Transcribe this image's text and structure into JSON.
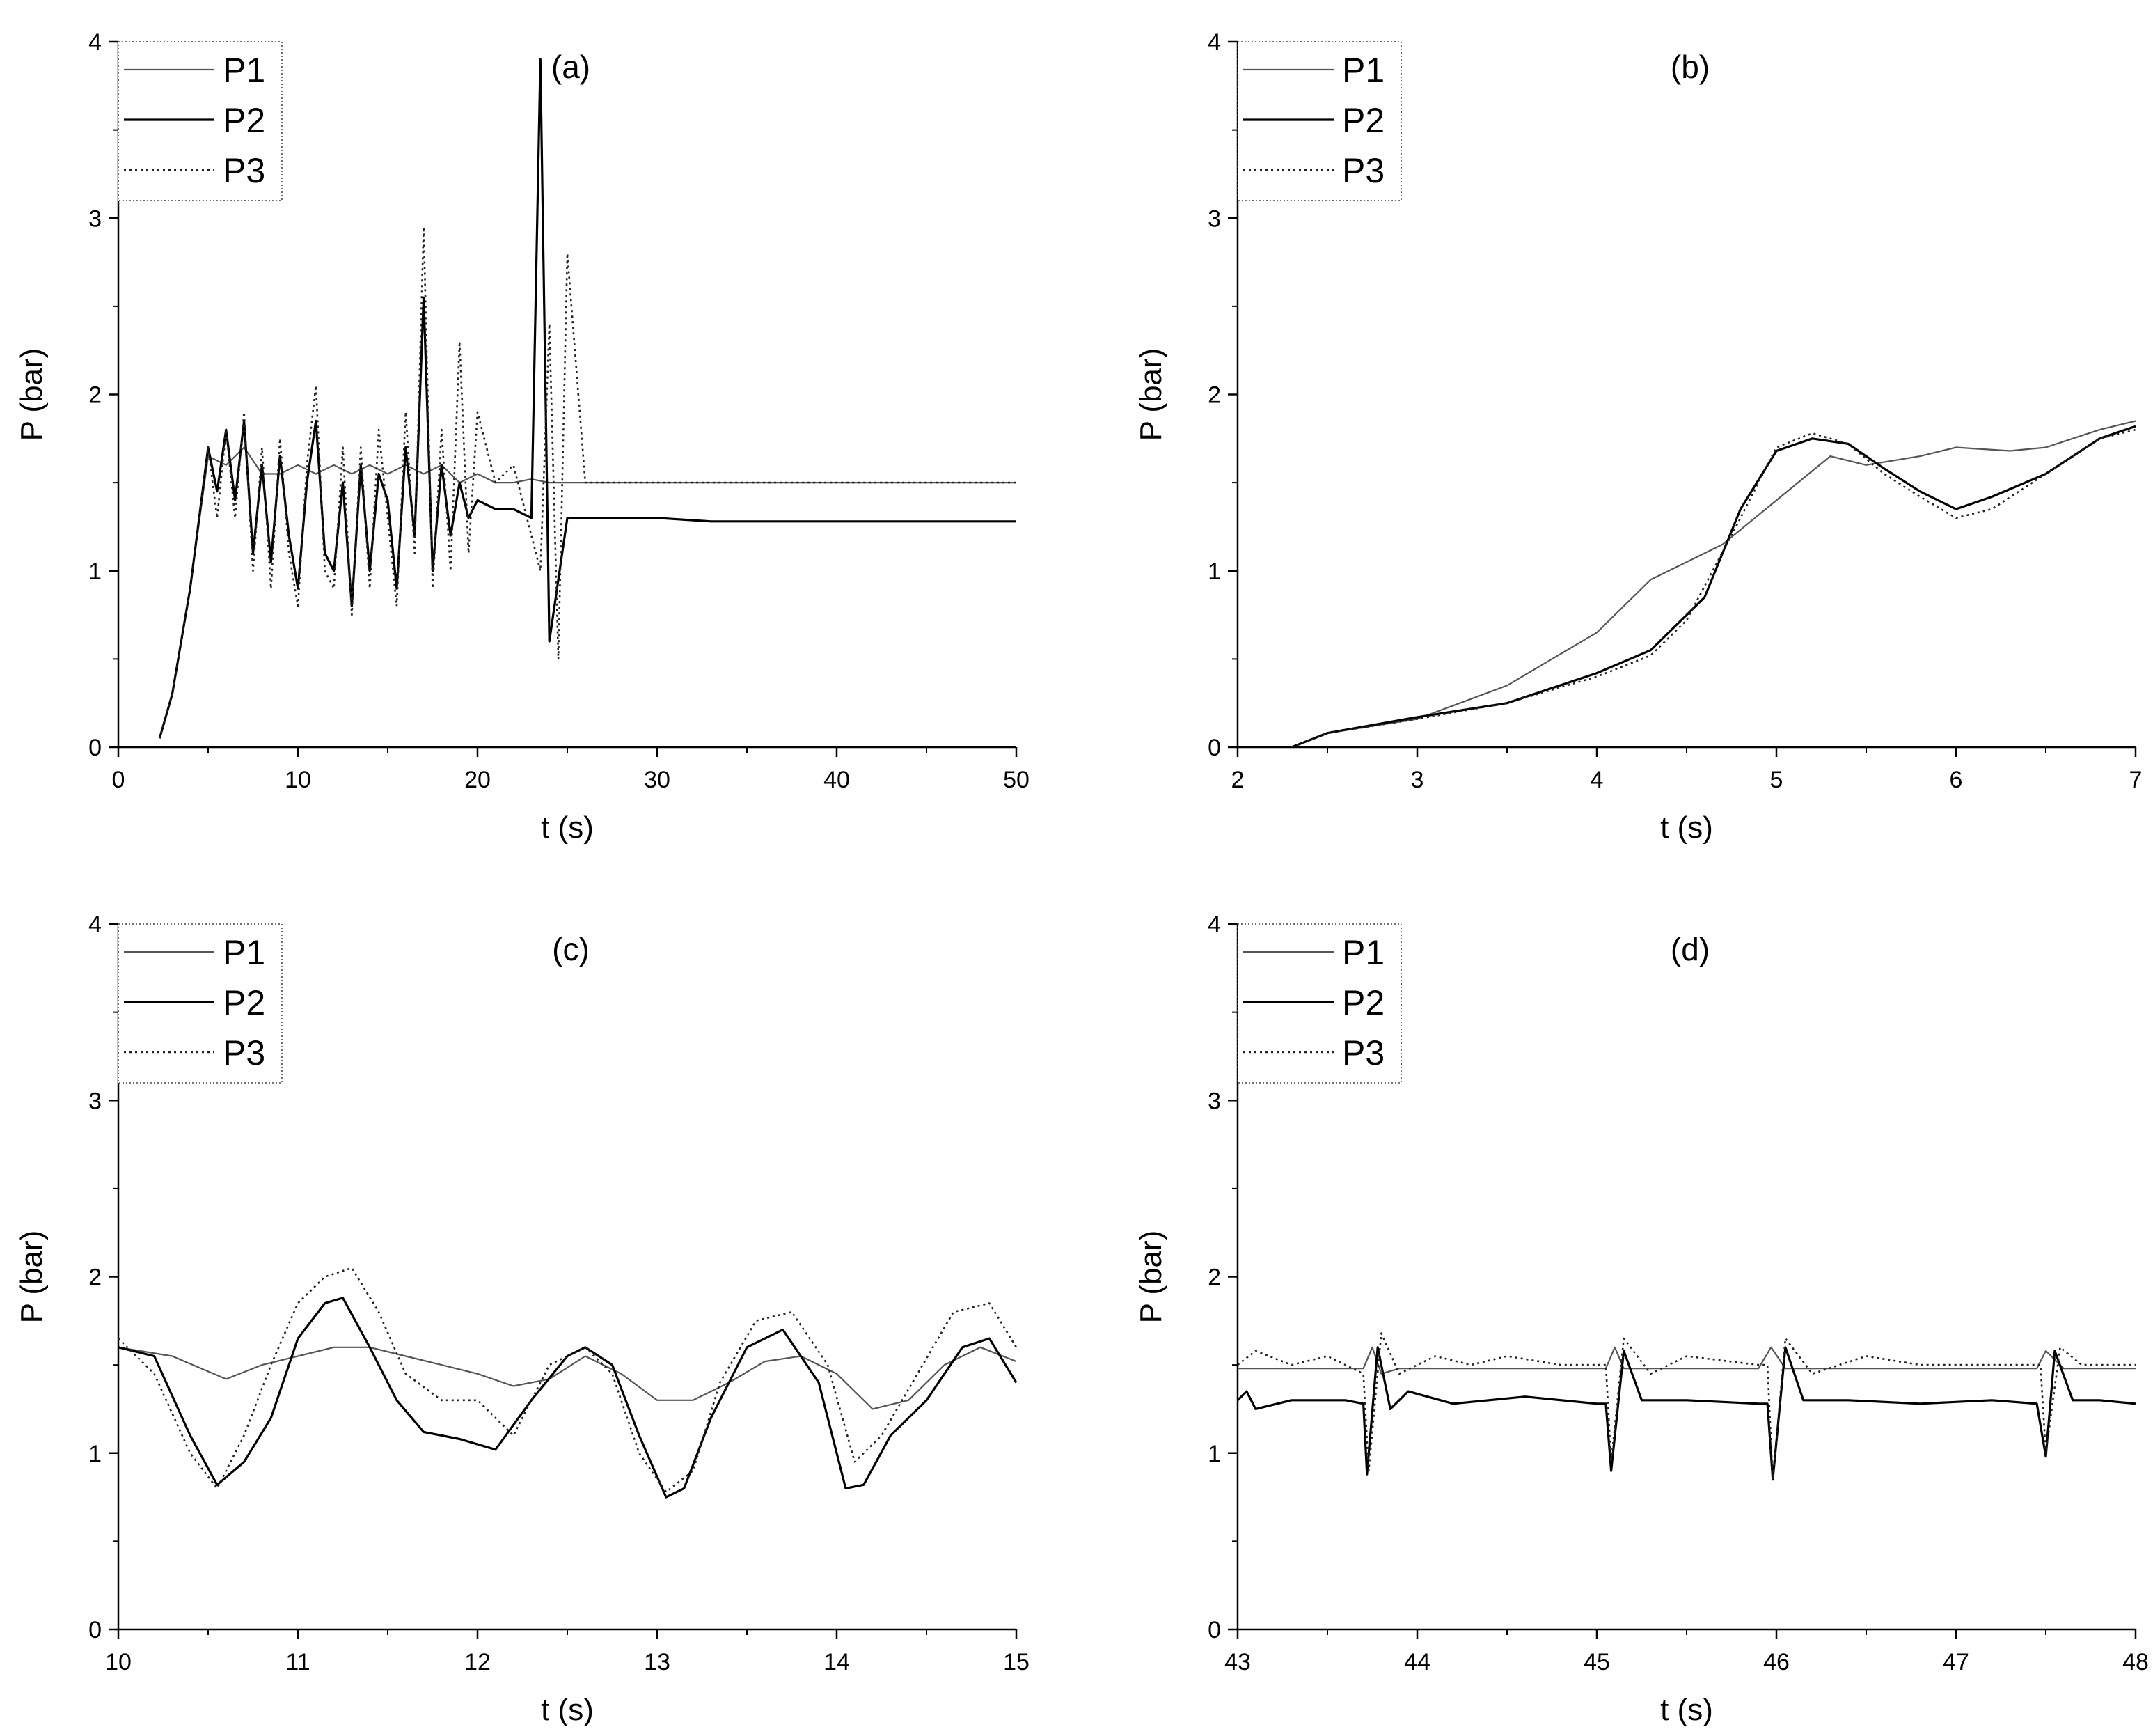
{
  "chart_data": [
    {
      "type": "line",
      "panel_label": "(a)",
      "xlabel": "t (s)",
      "ylabel": "P (bar)",
      "xlim": [
        0,
        50
      ],
      "ylim": [
        0,
        4
      ],
      "xticks": [
        "0",
        "10",
        "20",
        "30",
        "40",
        "50"
      ],
      "yticks": [
        "0",
        "1",
        "2",
        "3",
        "4"
      ],
      "legend": {
        "position": "top-left",
        "entries": [
          "P1",
          "P2",
          "P3"
        ]
      },
      "series": [
        {
          "name": "P1",
          "style": "solid-light",
          "x": [
            2.3,
            3,
            4,
            5,
            6,
            7,
            8,
            9,
            10,
            11,
            12,
            13,
            14,
            15,
            16,
            17,
            18,
            19,
            20,
            21,
            22,
            23,
            24,
            25,
            26,
            28,
            30,
            33,
            36,
            40,
            44,
            48,
            50
          ],
          "y": [
            0.05,
            0.3,
            0.9,
            1.65,
            1.6,
            1.7,
            1.55,
            1.55,
            1.6,
            1.55,
            1.6,
            1.55,
            1.6,
            1.55,
            1.6,
            1.55,
            1.6,
            1.5,
            1.55,
            1.5,
            1.5,
            1.52,
            1.5,
            1.5,
            1.5,
            1.5,
            1.5,
            1.5,
            1.5,
            1.5,
            1.5,
            1.5,
            1.5
          ]
        },
        {
          "name": "P2",
          "style": "solid",
          "x": [
            2.3,
            3,
            4,
            5,
            5.5,
            6,
            6.5,
            7,
            7.5,
            8,
            8.5,
            9,
            9.5,
            10,
            10.5,
            11,
            11.5,
            12,
            12.5,
            13,
            13.5,
            14,
            14.5,
            15,
            15.5,
            16,
            16.5,
            17,
            17.5,
            18,
            18.5,
            19,
            19.5,
            20,
            21,
            22,
            23,
            23.5,
            24,
            25,
            26,
            28,
            30,
            33,
            35,
            38,
            40,
            43,
            45,
            47,
            50
          ],
          "y": [
            0.05,
            0.3,
            0.9,
            1.7,
            1.45,
            1.8,
            1.4,
            1.85,
            1.1,
            1.6,
            1.05,
            1.65,
            1.2,
            0.9,
            1.5,
            1.85,
            1.1,
            1.0,
            1.5,
            0.8,
            1.6,
            1.0,
            1.55,
            1.4,
            0.9,
            1.7,
            1.2,
            2.55,
            1.0,
            1.6,
            1.2,
            1.5,
            1.3,
            1.4,
            1.35,
            1.35,
            1.3,
            3.9,
            0.6,
            1.3,
            1.3,
            1.3,
            1.3,
            1.28,
            1.28,
            1.28,
            1.28,
            1.28,
            1.28,
            1.28,
            1.28
          ]
        },
        {
          "name": "P3",
          "style": "dotted",
          "x": [
            2.3,
            3,
            4,
            5,
            5.5,
            6,
            6.5,
            7,
            7.5,
            8,
            8.5,
            9,
            9.5,
            10,
            10.5,
            11,
            11.5,
            12,
            12.5,
            13,
            13.5,
            14,
            14.5,
            15,
            15.5,
            16,
            16.5,
            17,
            17.5,
            18,
            18.5,
            19,
            19.5,
            20,
            21,
            22,
            23,
            23.5,
            24,
            24.5,
            25,
            26,
            28,
            30,
            33,
            35,
            37,
            40,
            43,
            45,
            47,
            50
          ],
          "y": [
            0.05,
            0.3,
            0.9,
            1.7,
            1.3,
            1.8,
            1.3,
            1.9,
            1.0,
            1.7,
            0.9,
            1.75,
            1.1,
            0.8,
            1.6,
            2.05,
            1.0,
            0.9,
            1.7,
            0.75,
            1.7,
            0.9,
            1.8,
            1.3,
            0.8,
            1.9,
            1.1,
            2.95,
            0.9,
            1.8,
            1.0,
            2.3,
            1.1,
            1.9,
            1.5,
            1.6,
            1.2,
            1.0,
            2.4,
            0.5,
            2.8,
            1.5,
            1.5,
            1.5,
            1.5,
            1.5,
            1.5,
            1.5,
            1.5,
            1.5,
            1.5,
            1.5
          ]
        }
      ]
    },
    {
      "type": "line",
      "panel_label": "(b)",
      "xlabel": "t (s)",
      "ylabel": "P (bar)",
      "xlim": [
        2,
        7
      ],
      "ylim": [
        0,
        4
      ],
      "xticks": [
        "2",
        "3",
        "4",
        "5",
        "6",
        "7"
      ],
      "yticks": [
        "0",
        "1",
        "2",
        "3",
        "4"
      ],
      "legend": {
        "position": "top-left",
        "entries": [
          "P1",
          "P2",
          "P3"
        ]
      },
      "series": [
        {
          "name": "P1",
          "style": "solid-light",
          "x": [
            2.3,
            2.5,
            3,
            3.5,
            4,
            4.3,
            4.5,
            4.7,
            5,
            5.3,
            5.5,
            5.8,
            6,
            6.3,
            6.5,
            6.8,
            7
          ],
          "y": [
            0,
            0.08,
            0.16,
            0.35,
            0.65,
            0.95,
            1.05,
            1.15,
            1.4,
            1.65,
            1.6,
            1.65,
            1.7,
            1.68,
            1.7,
            1.8,
            1.85
          ]
        },
        {
          "name": "P2",
          "style": "solid",
          "x": [
            2.3,
            2.5,
            3,
            3.5,
            4,
            4.3,
            4.5,
            4.6,
            4.8,
            5,
            5.2,
            5.4,
            5.6,
            5.8,
            6,
            6.2,
            6.5,
            6.8,
            7
          ],
          "y": [
            0,
            0.08,
            0.17,
            0.25,
            0.42,
            0.55,
            0.75,
            0.85,
            1.35,
            1.68,
            1.75,
            1.72,
            1.58,
            1.45,
            1.35,
            1.42,
            1.55,
            1.75,
            1.82
          ]
        },
        {
          "name": "P3",
          "style": "dotted",
          "x": [
            2.3,
            2.5,
            3,
            3.5,
            4,
            4.3,
            4.5,
            4.8,
            5,
            5.2,
            5.4,
            5.6,
            5.8,
            6,
            6.2,
            6.5,
            6.8,
            7
          ],
          "y": [
            0,
            0.08,
            0.16,
            0.25,
            0.4,
            0.52,
            0.72,
            1.3,
            1.7,
            1.78,
            1.72,
            1.55,
            1.42,
            1.3,
            1.35,
            1.55,
            1.75,
            1.8
          ]
        }
      ]
    },
    {
      "type": "line",
      "panel_label": "(c)",
      "xlabel": "t (s)",
      "ylabel": "P (bar)",
      "xlim": [
        10,
        15
      ],
      "ylim": [
        0,
        4
      ],
      "xticks": [
        "10",
        "11",
        "12",
        "13",
        "14",
        "15"
      ],
      "yticks": [
        "0",
        "1",
        "2",
        "3",
        "4"
      ],
      "legend": {
        "position": "top-left",
        "entries": [
          "P1",
          "P2",
          "P3"
        ]
      },
      "series": [
        {
          "name": "P1",
          "style": "solid-light",
          "x": [
            10,
            10.3,
            10.6,
            10.8,
            11,
            11.2,
            11.4,
            11.6,
            11.8,
            12,
            12.2,
            12.4,
            12.6,
            12.8,
            13,
            13.2,
            13.4,
            13.6,
            13.8,
            14,
            14.2,
            14.4,
            14.6,
            14.8,
            15
          ],
          "y": [
            1.6,
            1.55,
            1.42,
            1.5,
            1.55,
            1.6,
            1.6,
            1.55,
            1.5,
            1.45,
            1.38,
            1.42,
            1.55,
            1.45,
            1.3,
            1.3,
            1.4,
            1.52,
            1.55,
            1.45,
            1.25,
            1.3,
            1.5,
            1.6,
            1.52
          ]
        },
        {
          "name": "P2",
          "style": "solid",
          "x": [
            10,
            10.2,
            10.4,
            10.55,
            10.7,
            10.85,
            11,
            11.15,
            11.25,
            11.4,
            11.55,
            11.7,
            11.9,
            12.1,
            12.3,
            12.5,
            12.6,
            12.75,
            12.9,
            13.05,
            13.15,
            13.3,
            13.5,
            13.7,
            13.9,
            14.05,
            14.15,
            14.3,
            14.5,
            14.7,
            14.85,
            15
          ],
          "y": [
            1.6,
            1.55,
            1.1,
            0.82,
            0.95,
            1.2,
            1.65,
            1.85,
            1.88,
            1.6,
            1.3,
            1.12,
            1.08,
            1.02,
            1.3,
            1.55,
            1.6,
            1.5,
            1.1,
            0.75,
            0.8,
            1.2,
            1.6,
            1.7,
            1.4,
            0.8,
            0.82,
            1.1,
            1.3,
            1.6,
            1.65,
            1.4
          ]
        },
        {
          "name": "P3",
          "style": "dotted",
          "x": [
            10,
            10.2,
            10.4,
            10.55,
            10.7,
            10.85,
            11,
            11.15,
            11.3,
            11.45,
            11.6,
            11.8,
            12,
            12.2,
            12.4,
            12.6,
            12.75,
            12.9,
            13.05,
            13.2,
            13.35,
            13.55,
            13.75,
            13.95,
            14.1,
            14.25,
            14.45,
            14.65,
            14.85,
            15
          ],
          "y": [
            1.65,
            1.45,
            1.0,
            0.8,
            1.1,
            1.5,
            1.85,
            2.0,
            2.05,
            1.8,
            1.45,
            1.3,
            1.3,
            1.1,
            1.5,
            1.6,
            1.45,
            1.0,
            0.78,
            0.9,
            1.4,
            1.75,
            1.8,
            1.5,
            0.95,
            1.1,
            1.45,
            1.8,
            1.85,
            1.6
          ]
        }
      ]
    },
    {
      "type": "line",
      "panel_label": "(d)",
      "xlabel": "t (s)",
      "ylabel": "P (bar)",
      "xlim": [
        43,
        48
      ],
      "ylim": [
        0,
        4
      ],
      "xticks": [
        "43",
        "44",
        "45",
        "46",
        "47",
        "48"
      ],
      "yticks": [
        "0",
        "1",
        "2",
        "3",
        "4"
      ],
      "legend": {
        "position": "top-left",
        "entries": [
          "P1",
          "P2",
          "P3"
        ]
      },
      "series": [
        {
          "name": "P1",
          "style": "solid-light",
          "x": [
            43,
            43.5,
            43.7,
            43.75,
            43.8,
            43.9,
            44.5,
            45.05,
            45.1,
            45.15,
            45.3,
            45.9,
            45.97,
            46.05,
            46.2,
            47.45,
            47.5,
            47.6,
            48
          ],
          "y": [
            1.48,
            1.48,
            1.48,
            1.6,
            1.45,
            1.48,
            1.48,
            1.48,
            1.6,
            1.48,
            1.48,
            1.48,
            1.6,
            1.48,
            1.48,
            1.48,
            1.58,
            1.48,
            1.48
          ]
        },
        {
          "name": "P2",
          "style": "solid",
          "x": [
            43,
            43.05,
            43.1,
            43.3,
            43.6,
            43.7,
            43.72,
            43.78,
            43.85,
            43.95,
            44.2,
            44.6,
            45,
            45.05,
            45.08,
            45.15,
            45.25,
            45.5,
            45.9,
            45.95,
            45.98,
            46.05,
            46.15,
            46.4,
            46.8,
            47.2,
            47.45,
            47.5,
            47.55,
            47.65,
            47.8,
            48
          ],
          "y": [
            1.3,
            1.35,
            1.25,
            1.3,
            1.3,
            1.28,
            0.88,
            1.6,
            1.25,
            1.35,
            1.28,
            1.32,
            1.28,
            1.28,
            0.9,
            1.58,
            1.3,
            1.3,
            1.28,
            1.28,
            0.85,
            1.6,
            1.3,
            1.3,
            1.28,
            1.3,
            1.28,
            0.98,
            1.58,
            1.3,
            1.3,
            1.28
          ]
        },
        {
          "name": "P3",
          "style": "dotted",
          "x": [
            43,
            43.1,
            43.3,
            43.5,
            43.7,
            43.73,
            43.8,
            43.9,
            44.1,
            44.3,
            44.5,
            44.8,
            45.05,
            45.08,
            45.15,
            45.3,
            45.5,
            45.9,
            45.95,
            45.98,
            46.05,
            46.2,
            46.5,
            46.8,
            47.2,
            47.47,
            47.5,
            47.58,
            47.7,
            48
          ],
          "y": [
            1.5,
            1.58,
            1.5,
            1.55,
            1.45,
            0.9,
            1.68,
            1.45,
            1.55,
            1.5,
            1.55,
            1.5,
            1.5,
            0.95,
            1.65,
            1.45,
            1.55,
            1.5,
            1.5,
            0.85,
            1.65,
            1.45,
            1.55,
            1.5,
            1.5,
            1.5,
            1.0,
            1.6,
            1.5,
            1.5
          ]
        }
      ]
    }
  ]
}
